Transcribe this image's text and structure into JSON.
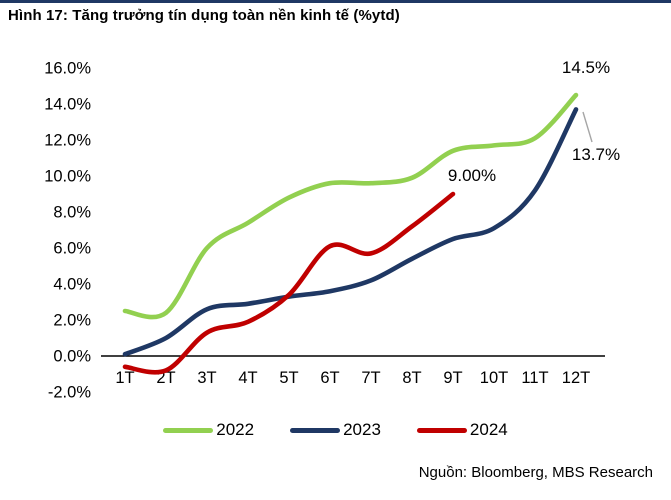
{
  "header": {
    "title": "Hình 17: Tăng trưởng tín dụng toàn nền kinh tế (%ytd)"
  },
  "footer": {
    "source": "Nguồn: Bloomberg, MBS Research"
  },
  "colors": {
    "top_rule": "#1f3864",
    "axis_text": "#000000",
    "zero_axis_line": "#000000",
    "leader_line": "#a6a6a6"
  },
  "chart_data": {
    "type": "line",
    "title": "Tăng trưởng tín dụng toàn nền kinh tế (%ytd)",
    "categories": [
      "1T",
      "2T",
      "3T",
      "4T",
      "5T",
      "6T",
      "7T",
      "8T",
      "9T",
      "10T",
      "11T",
      "12T"
    ],
    "y_tick_labels": [
      "16.0%",
      "14.0%",
      "12.0%",
      "10.0%",
      "8.0%",
      "6.0%",
      "4.0%",
      "2.0%",
      "0.0%",
      "-2.0%"
    ],
    "ylim": [
      -2.0,
      16.0
    ],
    "y_step": 2.0,
    "grid": false,
    "legend_position": "bottom",
    "series": [
      {
        "name": "2022",
        "color": "#92d050",
        "values": [
          2.5,
          2.4,
          6.0,
          7.4,
          8.8,
          9.6,
          9.6,
          9.9,
          11.4,
          11.7,
          12.1,
          14.5
        ]
      },
      {
        "name": "2023",
        "color": "#1f3864",
        "values": [
          0.1,
          1.0,
          2.6,
          2.9,
          3.3,
          3.6,
          4.2,
          5.4,
          6.5,
          7.1,
          9.2,
          13.7
        ]
      },
      {
        "name": "2024",
        "color": "#c00000",
        "values": [
          -0.6,
          -0.8,
          1.3,
          1.9,
          3.4,
          6.1,
          5.7,
          7.2,
          9.0
        ]
      }
    ],
    "annotations": [
      {
        "text": "14.5%",
        "series": "2022"
      },
      {
        "text": "13.7%",
        "series": "2023",
        "leader": true
      },
      {
        "text": "9.00%",
        "series": "2024"
      }
    ]
  }
}
